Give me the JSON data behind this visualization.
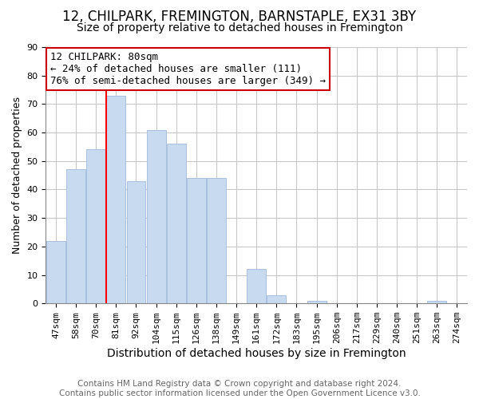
{
  "title": "12, CHILPARK, FREMINGTON, BARNSTAPLE, EX31 3BY",
  "subtitle": "Size of property relative to detached houses in Fremington",
  "xlabel": "Distribution of detached houses by size in Fremington",
  "ylabel": "Number of detached properties",
  "bar_labels": [
    "47sqm",
    "58sqm",
    "70sqm",
    "81sqm",
    "92sqm",
    "104sqm",
    "115sqm",
    "126sqm",
    "138sqm",
    "149sqm",
    "161sqm",
    "172sqm",
    "183sqm",
    "195sqm",
    "206sqm",
    "217sqm",
    "229sqm",
    "240sqm",
    "251sqm",
    "263sqm",
    "274sqm"
  ],
  "bar_values": [
    22,
    47,
    54,
    73,
    43,
    61,
    56,
    44,
    44,
    0,
    12,
    3,
    0,
    1,
    0,
    0,
    0,
    0,
    0,
    1,
    0
  ],
  "bar_color": "#c8daf0",
  "bar_edge_color": "#a8c0de",
  "ylim": [
    0,
    90
  ],
  "yticks": [
    0,
    10,
    20,
    30,
    40,
    50,
    60,
    70,
    80,
    90
  ],
  "property_line_label": "12 CHILPARK: 80sqm",
  "annotation_line1": "← 24% of detached houses are smaller (111)",
  "annotation_line2": "76% of semi-detached houses are larger (349) →",
  "footer_line1": "Contains HM Land Registry data © Crown copyright and database right 2024.",
  "footer_line2": "Contains public sector information licensed under the Open Government Licence v3.0.",
  "title_fontsize": 12,
  "subtitle_fontsize": 10,
  "xlabel_fontsize": 10,
  "ylabel_fontsize": 9,
  "footer_fontsize": 7.5,
  "annotation_fontsize": 9,
  "tick_fontsize": 8,
  "background_color": "#ffffff",
  "grid_color": "#c8c8c8"
}
